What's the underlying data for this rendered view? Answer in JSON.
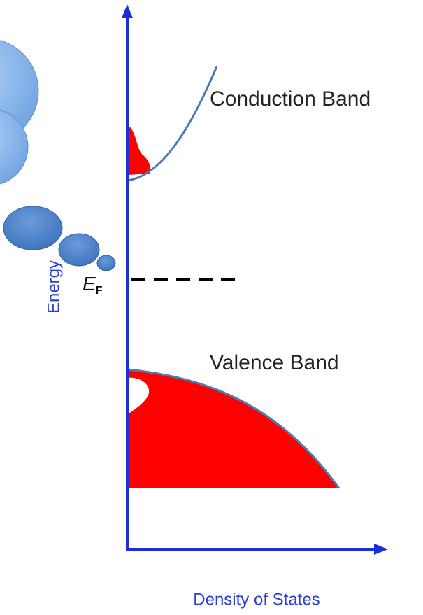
{
  "labels": {
    "conduction_band": "Conduction Band",
    "valence_band": "Valence Band",
    "x_axis": "Density of States",
    "y_axis": "Energy",
    "fermi_level": {
      "symbol": "E",
      "subscript": "F"
    }
  }
}
